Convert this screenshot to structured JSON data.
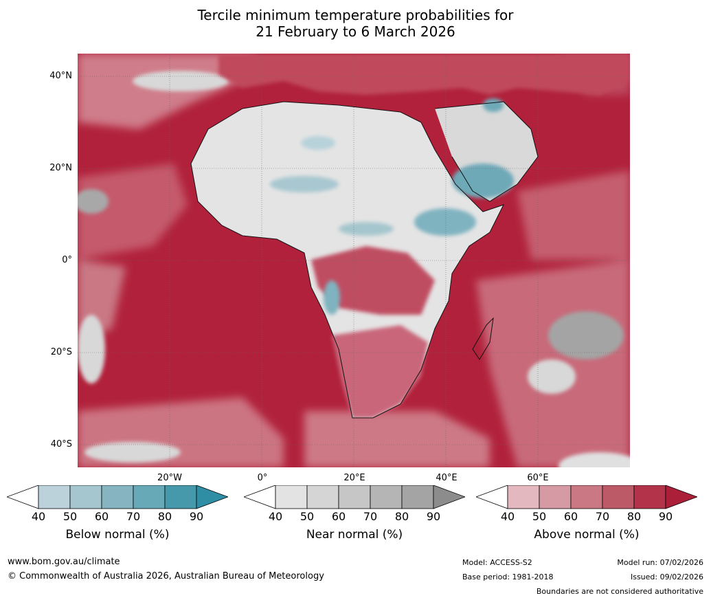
{
  "title_line1": "Tercile minimum temperature probabilities for",
  "title_line2": "21 February to 6 March 2026",
  "map": {
    "lat_labels": [
      "40°N",
      "20°N",
      "0°",
      "20°S",
      "40°S"
    ],
    "lon_labels": [
      "20°W",
      "0°",
      "20°E",
      "40°E",
      "60°E"
    ]
  },
  "colorbars": [
    {
      "name": "below",
      "title": "Below normal (%)",
      "ticks": [
        "40",
        "50",
        "60",
        "70",
        "80",
        "90"
      ],
      "colors": [
        "#bcd2da",
        "#a5c6ce",
        "#86b4c0",
        "#68a9b7",
        "#4699ab",
        "#2f8ea4"
      ]
    },
    {
      "name": "near",
      "title": "Near normal (%)",
      "ticks": [
        "40",
        "50",
        "60",
        "70",
        "80",
        "90"
      ],
      "colors": [
        "#e3e3e3",
        "#d5d5d5",
        "#c6c6c6",
        "#b5b5b5",
        "#a4a4a4",
        "#8c8c8c"
      ]
    },
    {
      "name": "above",
      "title": "Above normal (%)",
      "ticks": [
        "40",
        "50",
        "60",
        "70",
        "80",
        "90"
      ],
      "colors": [
        "#e3b8bf",
        "#d69aa4",
        "#c97884",
        "#bd5a68",
        "#b3344a",
        "#ab1f38"
      ]
    }
  ],
  "footer": {
    "website": "www.bom.gov.au/climate",
    "copyright": "© Commonwealth of Australia 2026, Australian Bureau of Meteorology",
    "model": "Model: ACCESS-S2",
    "base_period": "Base period: 1981-2018",
    "model_run": "Model run: 07/02/2026",
    "issued": "Issued: 09/02/2026",
    "disclaimer": "Boundaries are not considered authoritative"
  },
  "colors": {
    "ocean_above": "#b1213b",
    "land_near": "#e4e4e4",
    "cool": "#7fb3c0"
  }
}
